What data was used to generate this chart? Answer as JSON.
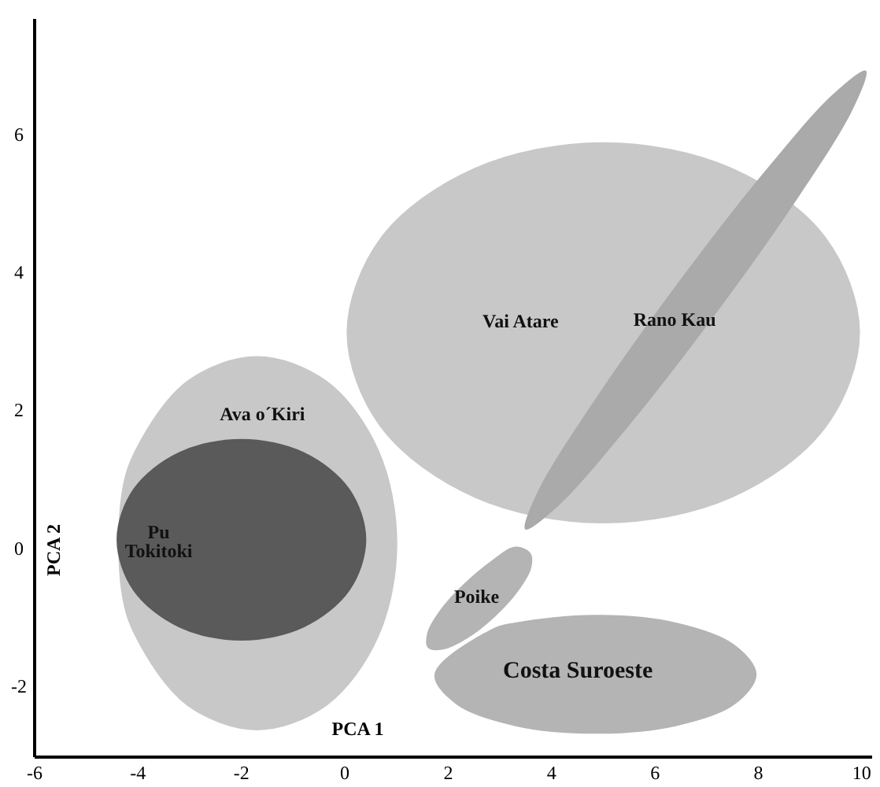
{
  "chart_data": {
    "type": "area",
    "xlabel": "PCA 1",
    "ylabel": "PCA 2",
    "xlim": [
      -6,
      10.2
    ],
    "xticks": [
      -6,
      -4,
      -2,
      0,
      2,
      4,
      6,
      8,
      10
    ],
    "ylim": [
      -3,
      7.7
    ],
    "yticks": [
      -2,
      0,
      2,
      4,
      6
    ],
    "grid": false,
    "series": [
      {
        "name": "Vai Atare",
        "color": "#c8c8c8",
        "x": [
          9.95,
          9.29,
          7.48,
          5.0,
          2.52,
          0.71,
          0.05,
          0.71,
          2.52,
          5.0,
          7.48,
          9.29
        ],
        "values": [
          3.15,
          4.53,
          5.53,
          5.9,
          5.53,
          4.53,
          3.15,
          1.78,
          0.77,
          0.4,
          0.77,
          1.78
        ]
      },
      {
        "name": "Ava o´Kiri",
        "color": "#c8c8c8",
        "x": [
          1.0,
          0.64,
          -0.35,
          -1.7,
          -3.05,
          -4.04,
          -4.31,
          -4.31,
          -4.04,
          -3.05,
          -1.7,
          -0.35,
          0.64
        ],
        "values": [
          0.1,
          1.45,
          2.44,
          2.8,
          2.44,
          1.45,
          0.8,
          -0.6,
          -1.25,
          -2.24,
          -2.6,
          -2.24,
          -1.25
        ]
      },
      {
        "name": "Pu Tokitoki",
        "color": "#5a5a5a",
        "x": [
          0.4,
          0.08,
          -0.8,
          -2.0,
          -3.2,
          -4.08,
          -4.4,
          -4.08,
          -3.2,
          -2.0,
          -0.8,
          0.08
        ],
        "values": [
          0.15,
          0.88,
          1.41,
          1.6,
          1.41,
          0.88,
          0.15,
          -0.58,
          -1.11,
          -1.3,
          -1.11,
          -0.58
        ]
      },
      {
        "name": "Rano Kau",
        "color": "#aaaaaa",
        "x": [
          10.07,
          9.81,
          8.74,
          7.15,
          5.46,
          4.12,
          3.5,
          3.75,
          4.82,
          6.41,
          8.1,
          9.44
        ],
        "values": [
          6.94,
          6.39,
          5.1,
          3.42,
          1.79,
          0.65,
          0.31,
          0.85,
          2.14,
          3.82,
          5.45,
          6.59
        ]
      },
      {
        "name": "Costa Suroeste",
        "color": "#b4b4b4",
        "x": [
          7.95,
          7.53,
          6.4,
          4.85,
          3.3,
          2.86,
          1.75,
          2.17,
          3.3,
          4.85,
          6.4,
          7.53
        ],
        "values": [
          -1.8,
          -1.38,
          -1.06,
          -0.95,
          -1.06,
          -1.15,
          -1.8,
          -2.23,
          -2.54,
          -2.65,
          -2.54,
          -2.23
        ]
      },
      {
        "name": "Poike",
        "color": "#b4b4b4",
        "x": [
          3.58,
          3.59,
          3.34,
          2.89,
          2.36,
          1.9,
          1.62,
          1.61,
          1.86,
          2.31,
          2.85,
          3.3
        ],
        "values": [
          -0.05,
          -0.26,
          -0.59,
          -0.96,
          -1.27,
          -1.43,
          -1.41,
          -1.2,
          -0.87,
          -0.5,
          -0.16,
          0.04
        ]
      }
    ]
  }
}
